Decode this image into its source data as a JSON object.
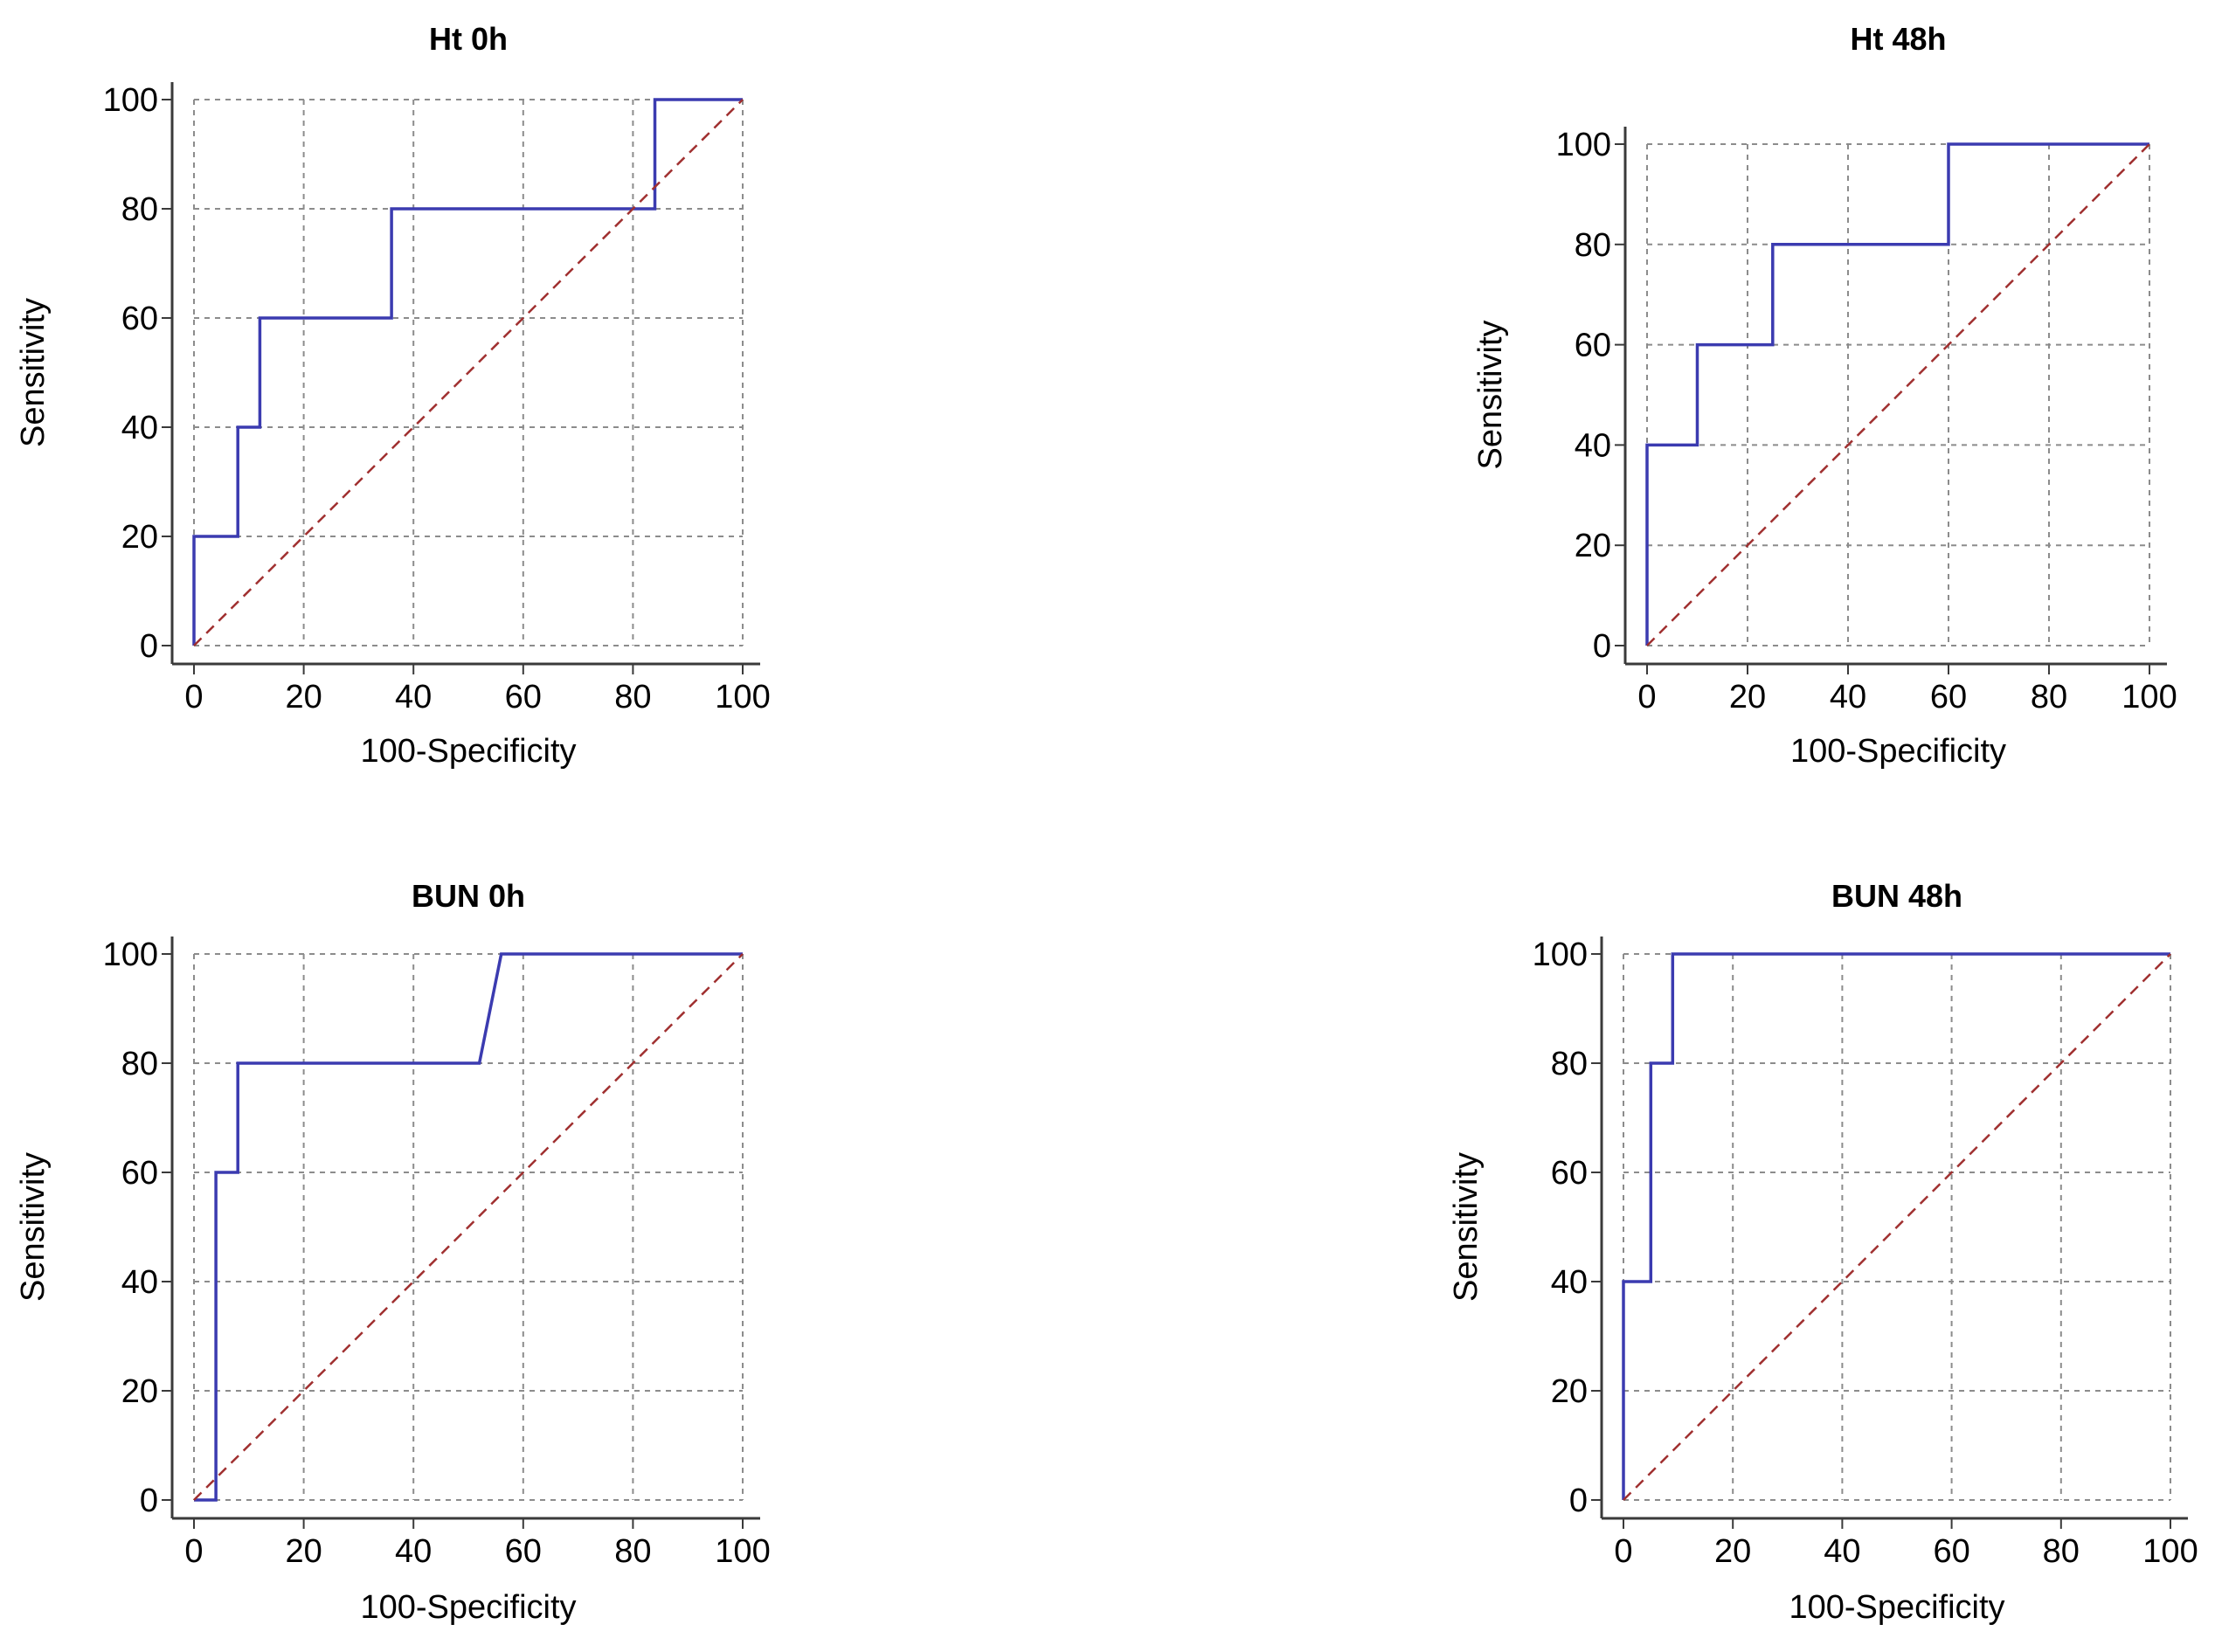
{
  "chart_data": [
    {
      "type": "line",
      "title": "Ht 0h",
      "xlabel": "100-Specificity",
      "ylabel": "Sensitivity",
      "xlim": [
        0,
        100
      ],
      "ylim": [
        0,
        100
      ],
      "xticks": [
        0,
        20,
        40,
        60,
        80,
        100
      ],
      "yticks": [
        0,
        20,
        40,
        60,
        80,
        100
      ],
      "grid": true,
      "series": [
        {
          "x": [
            0,
            0,
            8,
            8,
            12,
            12,
            36,
            36,
            84,
            84,
            100
          ],
          "y": [
            0,
            20,
            20,
            40,
            40,
            60,
            60,
            80,
            80,
            100,
            100
          ],
          "color": "#3b3bb0"
        },
        {
          "x": [
            0,
            100
          ],
          "y": [
            0,
            100
          ],
          "color": "#a03030",
          "dashed": true
        }
      ]
    },
    {
      "type": "line",
      "title": "Ht 48h",
      "xlabel": "100-Specificity",
      "ylabel": "Sensitivity",
      "xlim": [
        0,
        100
      ],
      "ylim": [
        0,
        100
      ],
      "xticks": [
        0,
        20,
        40,
        60,
        80,
        100
      ],
      "yticks": [
        0,
        20,
        40,
        60,
        80,
        100
      ],
      "grid": true,
      "series": [
        {
          "x": [
            0,
            0,
            10,
            10,
            25,
            25,
            60,
            60,
            100
          ],
          "y": [
            0,
            40,
            40,
            60,
            60,
            80,
            80,
            100,
            100
          ],
          "color": "#3b3bb0"
        },
        {
          "x": [
            0,
            100
          ],
          "y": [
            0,
            100
          ],
          "color": "#a03030",
          "dashed": true
        }
      ]
    },
    {
      "type": "line",
      "title": "BUN 0h",
      "xlabel": "100-Specificity",
      "ylabel": "Sensitivity",
      "xlim": [
        0,
        100
      ],
      "ylim": [
        0,
        100
      ],
      "xticks": [
        0,
        20,
        40,
        60,
        80,
        100
      ],
      "yticks": [
        0,
        20,
        40,
        60,
        80,
        100
      ],
      "grid": true,
      "series": [
        {
          "x": [
            0,
            4,
            4,
            8,
            8,
            52,
            56,
            100
          ],
          "y": [
            0,
            0,
            60,
            60,
            80,
            80,
            100,
            100
          ],
          "color": "#3b3bb0"
        },
        {
          "x": [
            0,
            100
          ],
          "y": [
            0,
            100
          ],
          "color": "#a03030",
          "dashed": true
        }
      ]
    },
    {
      "type": "line",
      "title": "BUN 48h",
      "xlabel": "100-Specificity",
      "ylabel": "Sensitivity",
      "xlim": [
        0,
        100
      ],
      "ylim": [
        0,
        100
      ],
      "xticks": [
        0,
        20,
        40,
        60,
        80,
        100
      ],
      "yticks": [
        0,
        20,
        40,
        60,
        80,
        100
      ],
      "grid": true,
      "series": [
        {
          "x": [
            0,
            0,
            5,
            5,
            9,
            9,
            100
          ],
          "y": [
            0,
            40,
            40,
            80,
            80,
            100,
            100
          ],
          "color": "#3b3bb0"
        },
        {
          "x": [
            0,
            100
          ],
          "y": [
            0,
            100
          ],
          "color": "#a03030",
          "dashed": true
        }
      ]
    }
  ]
}
